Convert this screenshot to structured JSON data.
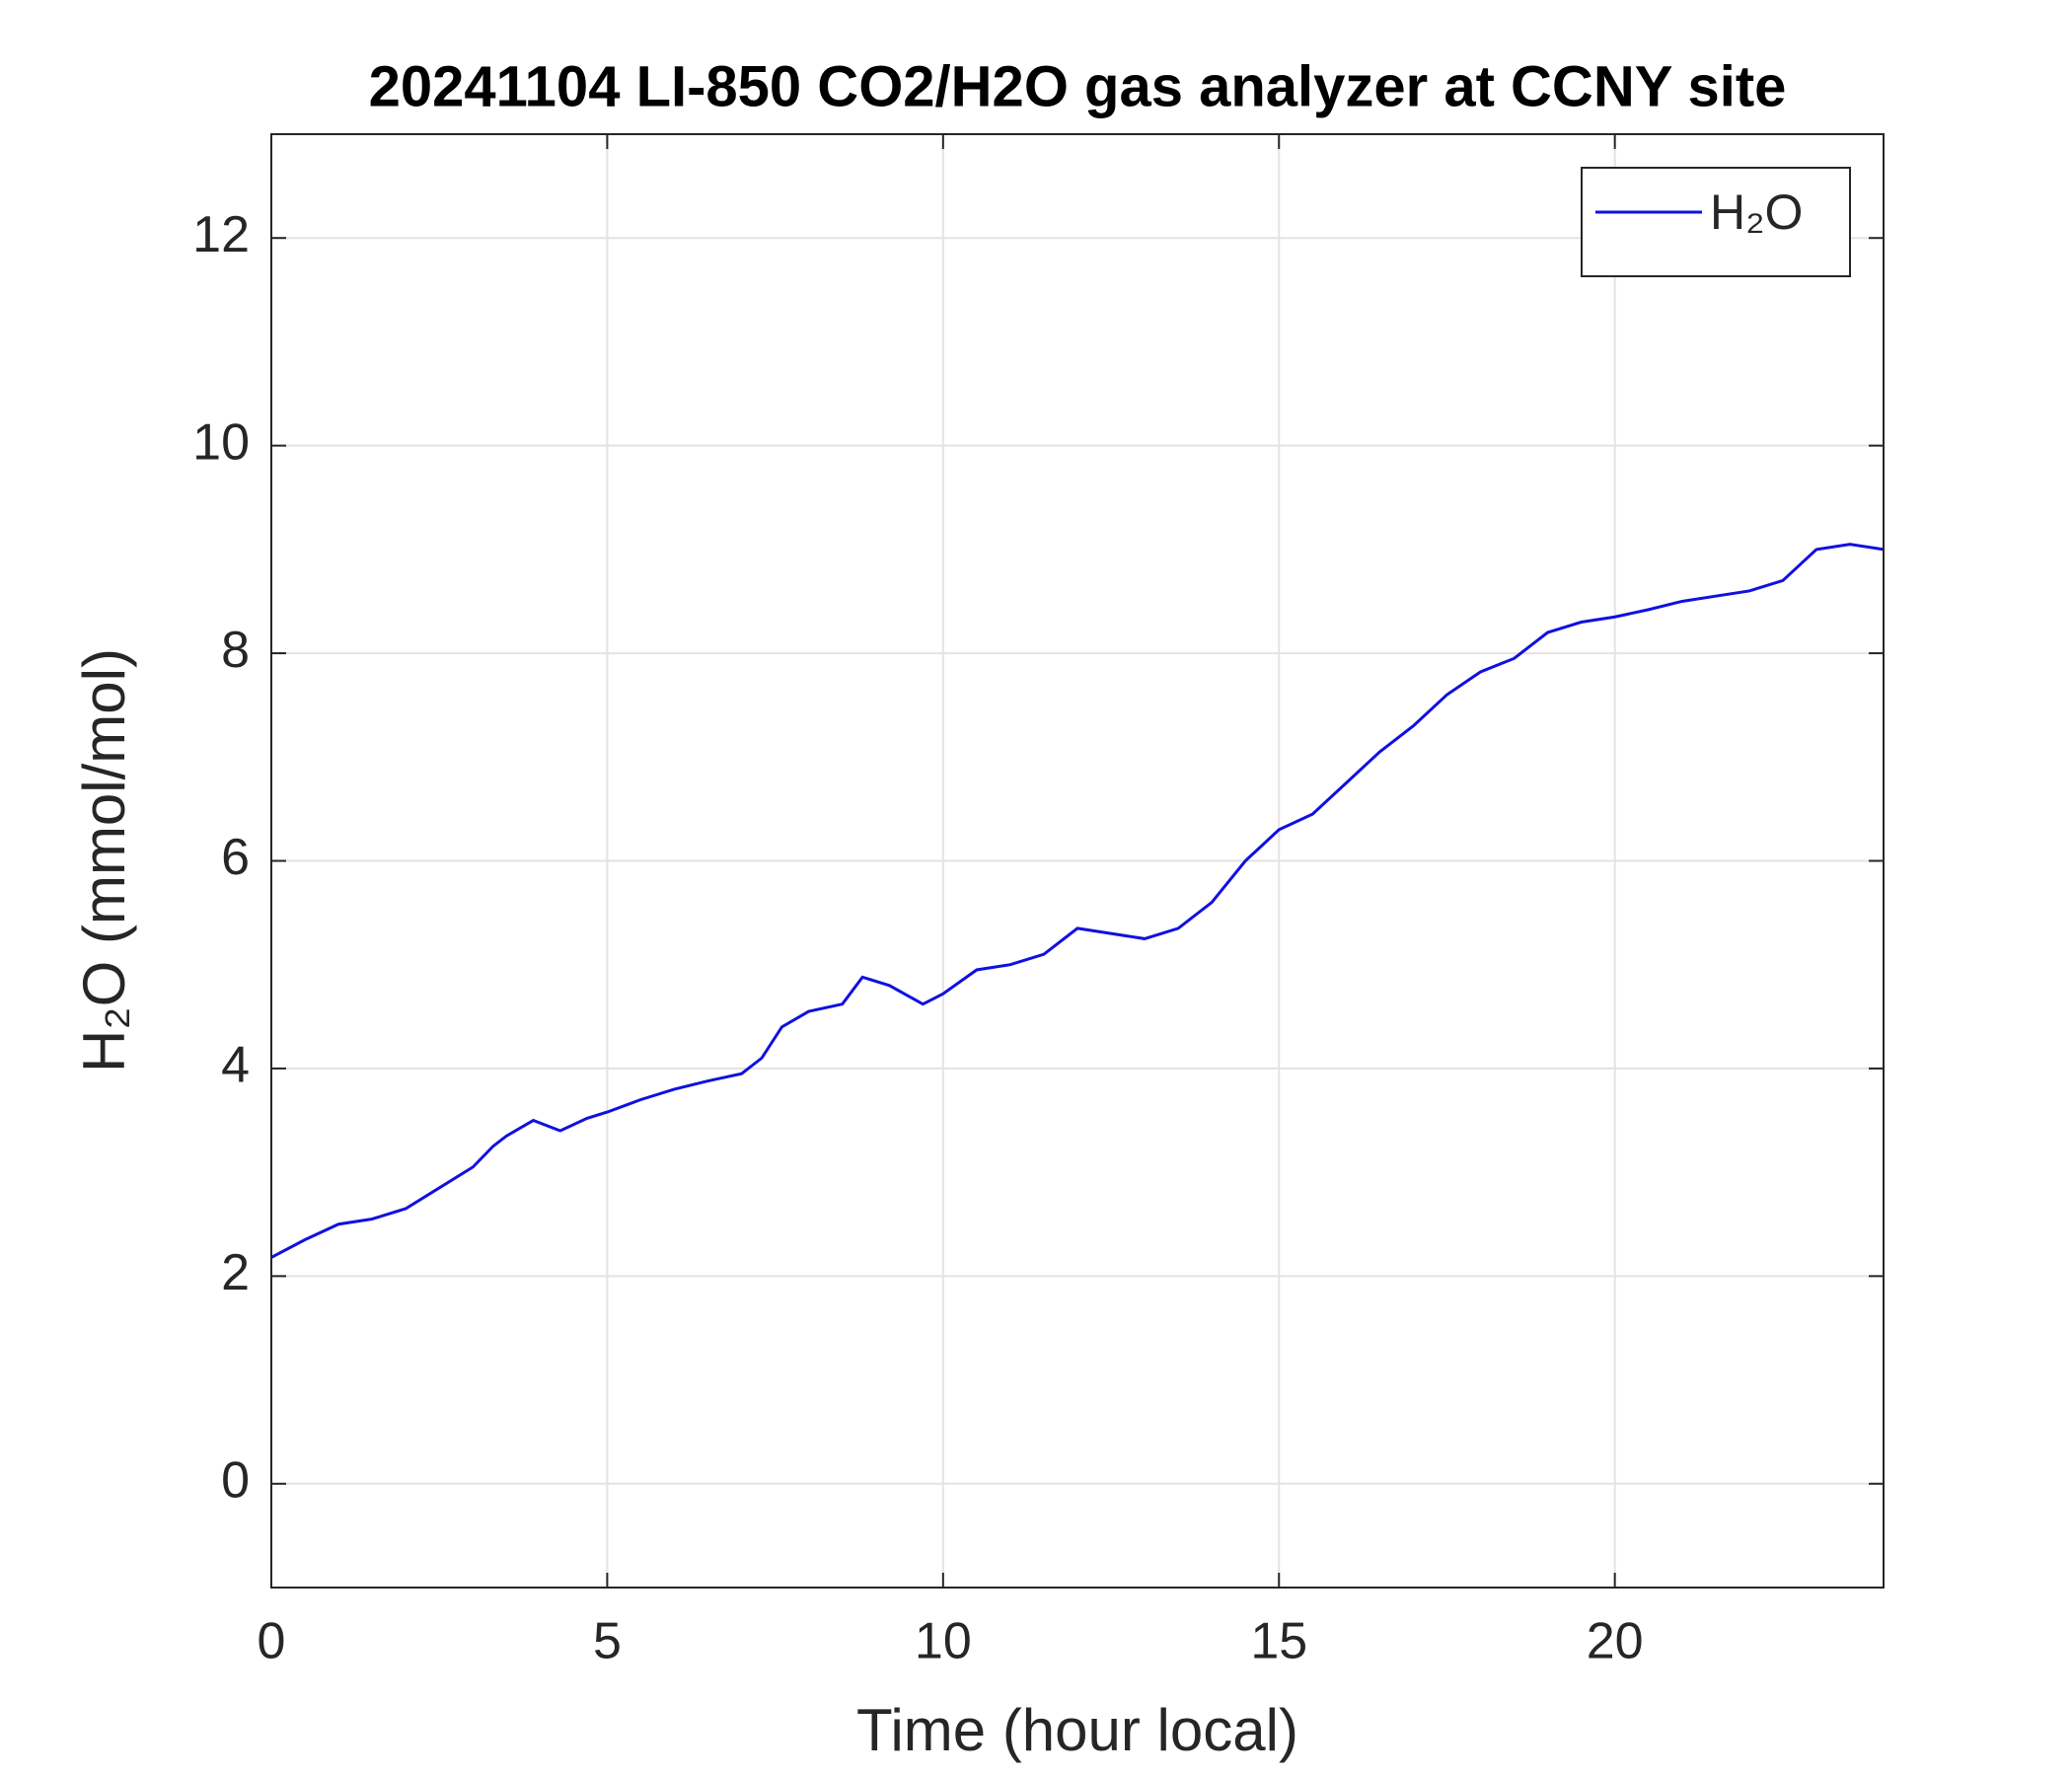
{
  "chart_data": {
    "type": "line",
    "title": "20241104 LI-850 CO2/H2O gas analyzer at CCNY site",
    "xlabel": "Time (hour local)",
    "ylabel": "H₂O (mmol/mol)",
    "x": [
      0,
      0.5,
      1,
      1.5,
      2,
      2.5,
      3,
      3.3,
      3.5,
      3.9,
      4.3,
      4.7,
      5,
      5.5,
      6,
      6.5,
      7,
      7.3,
      7.6,
      8,
      8.5,
      8.8,
      9.2,
      9.7,
      10,
      10.5,
      11,
      11.5,
      12,
      12.5,
      13,
      13.5,
      14,
      14.5,
      15,
      15.5,
      16,
      16.5,
      17,
      17.5,
      18,
      18.5,
      19,
      19.5,
      20,
      20.5,
      21,
      21.5,
      22,
      22.5,
      23,
      23.5,
      24
    ],
    "series": [
      {
        "name": "H₂O",
        "color": "#1010e0",
        "values": [
          2.18,
          2.35,
          2.5,
          2.55,
          2.65,
          2.85,
          3.05,
          3.25,
          3.35,
          3.5,
          3.4,
          3.52,
          3.58,
          3.7,
          3.8,
          3.88,
          3.95,
          4.1,
          4.4,
          4.55,
          4.62,
          4.88,
          4.8,
          4.62,
          4.72,
          4.95,
          5.0,
          5.1,
          5.35,
          5.3,
          5.25,
          5.35,
          5.6,
          6.0,
          6.3,
          6.45,
          6.75,
          7.05,
          7.3,
          7.6,
          7.82,
          7.95,
          8.2,
          8.3,
          8.35,
          8.42,
          8.5,
          8.55,
          8.6,
          8.7,
          9.0,
          9.05,
          9.0
        ]
      }
    ],
    "xlim": [
      0,
      24
    ],
    "xticks": [
      0,
      5,
      10,
      15,
      20
    ],
    "ylim": [
      -1,
      13
    ],
    "yticks": [
      0,
      2,
      4,
      6,
      8,
      10,
      12
    ],
    "grid": true,
    "legend": "northeast"
  }
}
